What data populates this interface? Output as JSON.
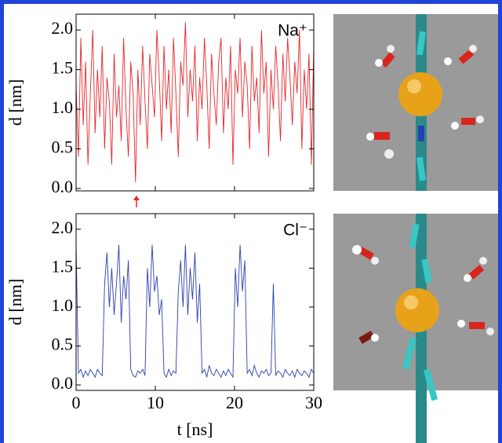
{
  "chart_data": [
    {
      "type": "line",
      "annotation": "Na⁺",
      "ylabel": "d [nm]",
      "color": "#e8262a",
      "xlim": [
        0,
        30
      ],
      "ylim": [
        -0.03,
        2.2
      ],
      "xticks": [
        0,
        10,
        20,
        30
      ],
      "x_tick_labels": false,
      "yticks": [
        {
          "value": 0,
          "label": "0.0"
        },
        {
          "value": 0.5,
          "label": "0.5"
        },
        {
          "value": 1,
          "label": "1.0"
        },
        {
          "value": 1.5,
          "label": "1.5"
        },
        {
          "value": 2,
          "label": "2.0"
        }
      ],
      "x": [
        0,
        0.3,
        0.6,
        0.9,
        1.2,
        1.5,
        1.8,
        2.1,
        2.4,
        2.7,
        3.0,
        3.3,
        3.6,
        3.9,
        4.2,
        4.5,
        4.8,
        5.1,
        5.4,
        5.7,
        6.0,
        6.3,
        6.6,
        6.9,
        7.2,
        7.5,
        7.8,
        8.1,
        8.4,
        8.7,
        9.0,
        9.3,
        9.6,
        9.9,
        10.2,
        10.5,
        10.8,
        11.1,
        11.4,
        11.7,
        12.0,
        12.3,
        12.6,
        12.9,
        13.2,
        13.5,
        13.8,
        14.1,
        14.4,
        14.7,
        15.0,
        15.3,
        15.6,
        15.9,
        16.2,
        16.5,
        16.8,
        17.1,
        17.4,
        17.7,
        18.0,
        18.3,
        18.6,
        18.9,
        19.2,
        19.5,
        19.8,
        20.1,
        20.4,
        20.7,
        21.0,
        21.3,
        21.6,
        21.9,
        22.2,
        22.5,
        22.8,
        23.1,
        23.4,
        23.7,
        24.0,
        24.3,
        24.6,
        24.9,
        25.2,
        25.5,
        25.8,
        26.1,
        26.4,
        26.7,
        27.0,
        27.3,
        27.6,
        27.9,
        28.2,
        28.5,
        28.8,
        29.1,
        29.4,
        29.7,
        30
      ],
      "values": [
        1.3,
        0.4,
        1.9,
        0.8,
        1.6,
        0.3,
        1.2,
        2.0,
        0.7,
        1.5,
        0.9,
        1.8,
        0.5,
        1.4,
        1.1,
        0.3,
        1.7,
        0.9,
        1.3,
        0.6,
        1.9,
        1.0,
        0.4,
        1.6,
        1.2,
        0.08,
        1.5,
        0.8,
        1.8,
        1.1,
        0.5,
        1.7,
        1.3,
        0.9,
        2.0,
        1.4,
        0.6,
        1.8,
        1.0,
        1.5,
        0.7,
        1.9,
        1.2,
        0.4,
        1.6,
        1.3,
        2.1,
        0.9,
        1.5,
        1.1,
        1.8,
        0.6,
        1.4,
        1.0,
        1.9,
        1.3,
        0.5,
        1.7,
        1.2,
        0.8,
        1.6,
        1.9,
        0.7,
        1.4,
        1.0,
        1.8,
        0.3,
        1.5,
        1.2,
        1.9,
        0.9,
        1.6,
        1.3,
        0.5,
        1.8,
        1.1,
        1.4,
        0.7,
        2.0,
        1.2,
        1.6,
        0.4,
        1.5,
        1.0,
        1.8,
        1.3,
        0.6,
        1.7,
        1.1,
        1.9,
        1.4,
        0.8,
        1.6,
        1.2,
        2.0,
        0.5,
        1.5,
        1.0,
        1.7,
        0.3,
        1.8
      ]
    },
    {
      "type": "line",
      "annotation": "Cl⁻",
      "ylabel": "d [nm]",
      "xlabel": "t [ns]",
      "color": "#2a3fb0",
      "xlim": [
        0,
        30
      ],
      "ylim": [
        -0.07,
        2.2
      ],
      "xticks": [
        0,
        10,
        20,
        30
      ],
      "x_tick_labels": true,
      "yticks": [
        {
          "value": 0,
          "label": "0.0"
        },
        {
          "value": 0.5,
          "label": "0.5"
        },
        {
          "value": 1,
          "label": "1.0"
        },
        {
          "value": 1.5,
          "label": "1.5"
        },
        {
          "value": 2,
          "label": "2.0"
        }
      ],
      "x": [
        0,
        0.3,
        0.6,
        0.9,
        1.2,
        1.5,
        1.8,
        2.1,
        2.4,
        2.7,
        3.0,
        3.3,
        3.6,
        3.9,
        4.2,
        4.5,
        4.8,
        5.1,
        5.4,
        5.7,
        6.0,
        6.3,
        6.6,
        6.9,
        7.2,
        7.5,
        7.8,
        8.1,
        8.4,
        8.7,
        9.0,
        9.3,
        9.6,
        9.9,
        10.2,
        10.5,
        10.8,
        11.1,
        11.4,
        11.7,
        12.0,
        12.3,
        12.6,
        12.9,
        13.2,
        13.5,
        13.8,
        14.1,
        14.4,
        14.7,
        15.0,
        15.3,
        15.6,
        15.9,
        16.2,
        16.5,
        16.8,
        17.1,
        17.4,
        17.7,
        18.0,
        18.3,
        18.6,
        18.9,
        19.2,
        19.5,
        19.8,
        20.1,
        20.4,
        20.7,
        21.0,
        21.3,
        21.6,
        21.9,
        22.2,
        22.5,
        22.8,
        23.1,
        23.4,
        23.7,
        24.0,
        24.3,
        24.6,
        24.9,
        25.2,
        25.5,
        25.8,
        26.1,
        26.4,
        26.7,
        27.0,
        27.3,
        27.6,
        27.9,
        28.2,
        28.5,
        28.8,
        29.1,
        29.4,
        29.7,
        30
      ],
      "values": [
        1.8,
        0.15,
        0.2,
        0.1,
        0.18,
        0.12,
        0.2,
        0.15,
        0.1,
        0.2,
        0.15,
        0.12,
        1.3,
        1.7,
        1.0,
        1.5,
        0.9,
        1.3,
        1.8,
        0.8,
        1.4,
        1.1,
        1.6,
        0.2,
        0.12,
        0.1,
        0.18,
        0.15,
        0.2,
        0.12,
        1.5,
        1.0,
        1.8,
        1.2,
        1.4,
        0.9,
        1.1,
        0.15,
        0.1,
        0.2,
        0.12,
        0.18,
        0.15,
        1.2,
        1.6,
        1.0,
        1.8,
        0.9,
        1.5,
        1.1,
        1.7,
        0.8,
        1.3,
        0.15,
        0.2,
        0.1,
        0.25,
        0.15,
        0.12,
        0.2,
        0.15,
        0.1,
        0.18,
        0.12,
        0.2,
        0.15,
        0.1,
        1.5,
        1.0,
        1.8,
        1.2,
        1.6,
        0.15,
        0.2,
        0.12,
        0.25,
        0.15,
        0.1,
        0.18,
        0.15,
        0.2,
        0.12,
        0.15,
        1.3,
        0.12,
        0.18,
        0.15,
        0.1,
        0.2,
        0.15,
        0.12,
        0.18,
        0.1,
        0.2,
        0.15,
        0.12,
        0.18,
        0.15,
        0.1,
        0.2,
        0.15
      ]
    }
  ]
}
